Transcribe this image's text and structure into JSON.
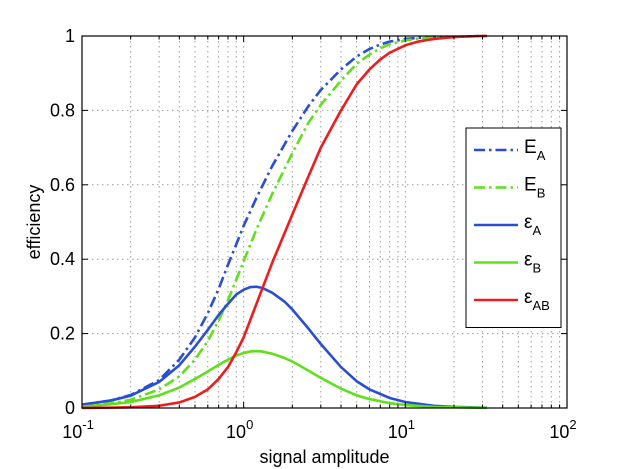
{
  "chart_data": {
    "type": "line",
    "title": "",
    "xlabel": "signal amplitude",
    "ylabel": "efficiency",
    "xscale": "log",
    "xlim": [
      0.1,
      100
    ],
    "ylim": [
      0,
      1
    ],
    "grid": true,
    "legend_position": "right",
    "x_ticks": [
      {
        "value": 0.1,
        "base": "10",
        "exp": "-1"
      },
      {
        "value": 1,
        "base": "10",
        "exp": "0"
      },
      {
        "value": 10,
        "base": "10",
        "exp": "1"
      },
      {
        "value": 100,
        "base": "10",
        "exp": "2"
      }
    ],
    "y_ticks": [
      {
        "value": 0,
        "label": "0"
      },
      {
        "value": 0.2,
        "label": "0.2"
      },
      {
        "value": 0.4,
        "label": "0.4"
      },
      {
        "value": 0.6,
        "label": "0.6"
      },
      {
        "value": 0.8,
        "label": "0.8"
      },
      {
        "value": 1,
        "label": "1"
      }
    ],
    "series": [
      {
        "name": "E_A",
        "label": "E",
        "sub": "A",
        "color": "#2a4dd6",
        "style": "dashdot",
        "x": [
          0.1,
          0.15,
          0.2,
          0.3,
          0.4,
          0.5,
          0.6,
          0.7,
          0.8,
          0.9,
          1.0,
          1.2,
          1.5,
          2,
          2.5,
          3,
          4,
          5,
          6,
          7,
          8,
          10,
          12,
          15,
          20,
          25,
          30,
          32
        ],
        "y": [
          0.009,
          0.02,
          0.035,
          0.075,
          0.13,
          0.19,
          0.255,
          0.32,
          0.385,
          0.44,
          0.49,
          0.565,
          0.65,
          0.745,
          0.81,
          0.855,
          0.91,
          0.945,
          0.965,
          0.977,
          0.985,
          0.992,
          0.995,
          0.997,
          0.998,
          0.999,
          1.0,
          1.0
        ]
      },
      {
        "name": "E_B",
        "label": "E",
        "sub": "B",
        "color": "#5fe01a",
        "style": "dashdot",
        "x": [
          0.1,
          0.15,
          0.2,
          0.3,
          0.4,
          0.5,
          0.6,
          0.7,
          0.8,
          0.9,
          1.0,
          1.2,
          1.5,
          2,
          2.5,
          3,
          4,
          5,
          6,
          7,
          8,
          10,
          12,
          15,
          20,
          25,
          30,
          32
        ],
        "y": [
          0.005,
          0.012,
          0.022,
          0.05,
          0.085,
          0.13,
          0.18,
          0.235,
          0.29,
          0.345,
          0.395,
          0.48,
          0.575,
          0.685,
          0.765,
          0.815,
          0.88,
          0.925,
          0.95,
          0.967,
          0.978,
          0.988,
          0.993,
          0.996,
          0.998,
          0.999,
          1.0,
          1.0
        ]
      },
      {
        "name": "ε_A",
        "label": "ε",
        "sub": "A",
        "color": "#2a4dd6",
        "style": "solid",
        "x": [
          0.1,
          0.15,
          0.2,
          0.3,
          0.4,
          0.5,
          0.6,
          0.7,
          0.8,
          0.9,
          1.0,
          1.1,
          1.2,
          1.3,
          1.5,
          1.8,
          2,
          2.5,
          3,
          4,
          5,
          6,
          8,
          10,
          15,
          20,
          25,
          30,
          32
        ],
        "y": [
          0.009,
          0.02,
          0.033,
          0.07,
          0.115,
          0.165,
          0.21,
          0.25,
          0.28,
          0.305,
          0.318,
          0.325,
          0.326,
          0.323,
          0.31,
          0.285,
          0.265,
          0.215,
          0.172,
          0.11,
          0.072,
          0.05,
          0.027,
          0.016,
          0.006,
          0.003,
          0.002,
          0.001,
          0.001
        ]
      },
      {
        "name": "ε_B",
        "label": "ε",
        "sub": "B",
        "color": "#5fe01a",
        "style": "solid",
        "x": [
          0.1,
          0.15,
          0.2,
          0.3,
          0.4,
          0.5,
          0.6,
          0.7,
          0.8,
          0.9,
          1.0,
          1.1,
          1.2,
          1.3,
          1.5,
          1.8,
          2,
          2.5,
          3,
          4,
          5,
          6,
          8,
          10,
          15,
          20,
          25,
          30,
          32
        ],
        "y": [
          0.004,
          0.01,
          0.016,
          0.034,
          0.055,
          0.078,
          0.098,
          0.116,
          0.13,
          0.141,
          0.148,
          0.152,
          0.153,
          0.152,
          0.146,
          0.134,
          0.125,
          0.101,
          0.081,
          0.052,
          0.034,
          0.024,
          0.013,
          0.008,
          0.003,
          0.002,
          0.001,
          0.001,
          0.001
        ]
      },
      {
        "name": "ε_AB",
        "label": "ε",
        "sub": "AB",
        "color": "#ee1c1c",
        "style": "solid",
        "x": [
          0.1,
          0.15,
          0.2,
          0.3,
          0.4,
          0.5,
          0.6,
          0.7,
          0.8,
          0.9,
          1.0,
          1.2,
          1.5,
          2,
          2.5,
          3,
          4,
          5,
          6,
          7,
          8,
          10,
          12,
          15,
          20,
          25,
          30,
          32
        ],
        "y": [
          0.0003,
          0.001,
          0.002,
          0.006,
          0.015,
          0.03,
          0.05,
          0.078,
          0.11,
          0.15,
          0.19,
          0.28,
          0.39,
          0.52,
          0.62,
          0.7,
          0.8,
          0.87,
          0.91,
          0.937,
          0.955,
          0.975,
          0.985,
          0.992,
          0.997,
          0.999,
          1.0,
          1.0
        ]
      }
    ]
  }
}
